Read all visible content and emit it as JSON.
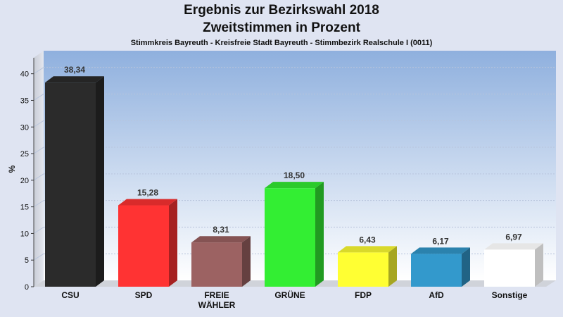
{
  "chart_data": {
    "type": "bar",
    "title": "Ergebnis zur Bezirkswahl 2018",
    "subtitle": "Zweitstimmen in Prozent",
    "caption": "Stimmkreis Bayreuth - Kreisfreie Stadt Bayreuth - Stimmbezirk Realschule I (0011)",
    "ylabel": "%",
    "xlabel": "",
    "ylim": [
      0,
      43
    ],
    "yticks": [
      0,
      5,
      10,
      15,
      20,
      25,
      30,
      35,
      40
    ],
    "categories": [
      "CSU",
      "SPD",
      "FREIE WÄHLER",
      "GRÜNE",
      "FDP",
      "AfD",
      "Sonstige"
    ],
    "category_lines": [
      [
        "CSU"
      ],
      [
        "SPD"
      ],
      [
        "FREIE",
        "WÄHLER"
      ],
      [
        "GRÜNE"
      ],
      [
        "FDP"
      ],
      [
        "AfD"
      ],
      [
        "Sonstige"
      ]
    ],
    "values": [
      38.34,
      15.28,
      8.31,
      18.5,
      6.43,
      6.17,
      6.97
    ],
    "value_labels": [
      "38,34",
      "15,28",
      "8,31",
      "18,50",
      "6,43",
      "6,17",
      "6,97"
    ],
    "colors": [
      "#2b2b2b",
      "#ff3333",
      "#9c6262",
      "#33ee33",
      "#ffff33",
      "#3399cc",
      "#ffffff"
    ],
    "grid": true,
    "legend": "none"
  }
}
